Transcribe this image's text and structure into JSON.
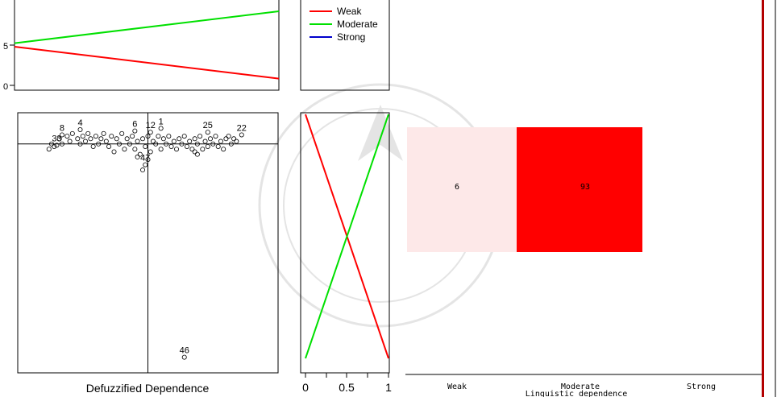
{
  "colors": {
    "weak": "#ff0000",
    "moderate": "#00e000",
    "strong": "#0000cc",
    "heat_low": "#fde8e8",
    "heat_high": "#ff0000",
    "right_bar": "#b30000"
  },
  "legend": {
    "items": [
      {
        "label": "Weak",
        "color_key": "weak"
      },
      {
        "label": "Moderate",
        "color_key": "moderate"
      },
      {
        "label": "Strong",
        "color_key": "strong"
      }
    ]
  },
  "labels": {
    "scatter_xlabel": "Defuzzified Dependence",
    "heatmap_xlabel": "Linguistic dependence",
    "top_left_ticks": [
      "5",
      "0"
    ],
    "small_x_ticks": [
      "0",
      "0.5",
      "1"
    ]
  },
  "chart_data": [
    {
      "type": "line",
      "panel": "top-left",
      "series": [
        {
          "name": "Moderate",
          "x": [
            0,
            1
          ],
          "y": [
            0.55,
            1.0
          ]
        },
        {
          "name": "Weak",
          "x": [
            0,
            1
          ],
          "y": [
            0.5,
            0.05
          ]
        }
      ],
      "xlim": [
        0,
        1
      ],
      "ylim": [
        0,
        1
      ]
    },
    {
      "type": "line",
      "panel": "middle-membership",
      "xticks": [
        "0",
        "0.5",
        "1"
      ],
      "series": [
        {
          "name": "Weak",
          "x": [
            0,
            1
          ],
          "y": [
            1,
            0
          ]
        },
        {
          "name": "Moderate",
          "x": [
            0,
            1
          ],
          "y": [
            0,
            1
          ]
        }
      ],
      "xlim": [
        0,
        1
      ],
      "ylim": [
        0,
        1
      ]
    },
    {
      "type": "scatter",
      "panel": "scatter",
      "xlabel": "Defuzzified Dependence",
      "xlim": [
        0,
        1
      ],
      "ylim": [
        0,
        1
      ],
      "reference_lines": {
        "x": 0.5,
        "y": 0.88
      },
      "labeled_points": [
        {
          "label": "4",
          "x": 0.24,
          "y": 0.935
        },
        {
          "label": "8",
          "x": 0.17,
          "y": 0.915
        },
        {
          "label": "1",
          "x": 0.55,
          "y": 0.94
        },
        {
          "label": "6",
          "x": 0.45,
          "y": 0.93
        },
        {
          "label": "12",
          "x": 0.51,
          "y": 0.925
        },
        {
          "label": "25",
          "x": 0.73,
          "y": 0.925
        },
        {
          "label": "22",
          "x": 0.86,
          "y": 0.915
        },
        {
          "label": "33",
          "x": 0.15,
          "y": 0.875
        },
        {
          "label": "47",
          "x": 0.49,
          "y": 0.8
        },
        {
          "label": "46",
          "x": 0.64,
          "y": 0.06
        }
      ],
      "cluster_points": [
        [
          0.14,
          0.87
        ],
        [
          0.16,
          0.9
        ],
        [
          0.17,
          0.88
        ],
        [
          0.19,
          0.91
        ],
        [
          0.2,
          0.89
        ],
        [
          0.21,
          0.92
        ],
        [
          0.23,
          0.9
        ],
        [
          0.24,
          0.88
        ],
        [
          0.25,
          0.91
        ],
        [
          0.26,
          0.89
        ],
        [
          0.27,
          0.92
        ],
        [
          0.28,
          0.9
        ],
        [
          0.29,
          0.87
        ],
        [
          0.3,
          0.91
        ],
        [
          0.31,
          0.88
        ],
        [
          0.32,
          0.9
        ],
        [
          0.33,
          0.92
        ],
        [
          0.34,
          0.89
        ],
        [
          0.35,
          0.87
        ],
        [
          0.36,
          0.91
        ],
        [
          0.37,
          0.85
        ],
        [
          0.38,
          0.9
        ],
        [
          0.39,
          0.88
        ],
        [
          0.4,
          0.92
        ],
        [
          0.41,
          0.86
        ],
        [
          0.42,
          0.9
        ],
        [
          0.43,
          0.88
        ],
        [
          0.44,
          0.91
        ],
        [
          0.45,
          0.86
        ],
        [
          0.46,
          0.89
        ],
        [
          0.47,
          0.84
        ],
        [
          0.48,
          0.9
        ],
        [
          0.49,
          0.87
        ],
        [
          0.5,
          0.91
        ],
        [
          0.51,
          0.85
        ],
        [
          0.52,
          0.89
        ],
        [
          0.53,
          0.88
        ],
        [
          0.54,
          0.91
        ],
        [
          0.55,
          0.86
        ],
        [
          0.56,
          0.9
        ],
        [
          0.57,
          0.88
        ],
        [
          0.58,
          0.91
        ],
        [
          0.59,
          0.87
        ],
        [
          0.6,
          0.89
        ],
        [
          0.61,
          0.86
        ],
        [
          0.62,
          0.9
        ],
        [
          0.63,
          0.88
        ],
        [
          0.64,
          0.91
        ],
        [
          0.65,
          0.87
        ],
        [
          0.66,
          0.89
        ],
        [
          0.67,
          0.86
        ],
        [
          0.68,
          0.9
        ],
        [
          0.69,
          0.88
        ],
        [
          0.7,
          0.91
        ],
        [
          0.71,
          0.86
        ],
        [
          0.72,
          0.89
        ],
        [
          0.73,
          0.87
        ],
        [
          0.74,
          0.9
        ],
        [
          0.75,
          0.88
        ],
        [
          0.76,
          0.91
        ],
        [
          0.77,
          0.87
        ],
        [
          0.78,
          0.89
        ],
        [
          0.79,
          0.86
        ],
        [
          0.8,
          0.9
        ],
        [
          0.81,
          0.91
        ],
        [
          0.82,
          0.88
        ],
        [
          0.83,
          0.9
        ],
        [
          0.84,
          0.89
        ],
        [
          0.12,
          0.86
        ],
        [
          0.13,
          0.88
        ],
        [
          0.46,
          0.83
        ],
        [
          0.5,
          0.82
        ],
        [
          0.48,
          0.78
        ],
        [
          0.68,
          0.85
        ],
        [
          0.69,
          0.84
        ]
      ]
    },
    {
      "type": "heatmap",
      "panel": "heatmap",
      "xlabel": "Linguistic dependence",
      "categories": [
        "Weak",
        "Moderate",
        "Strong"
      ],
      "values": [
        6,
        93,
        null
      ]
    }
  ]
}
